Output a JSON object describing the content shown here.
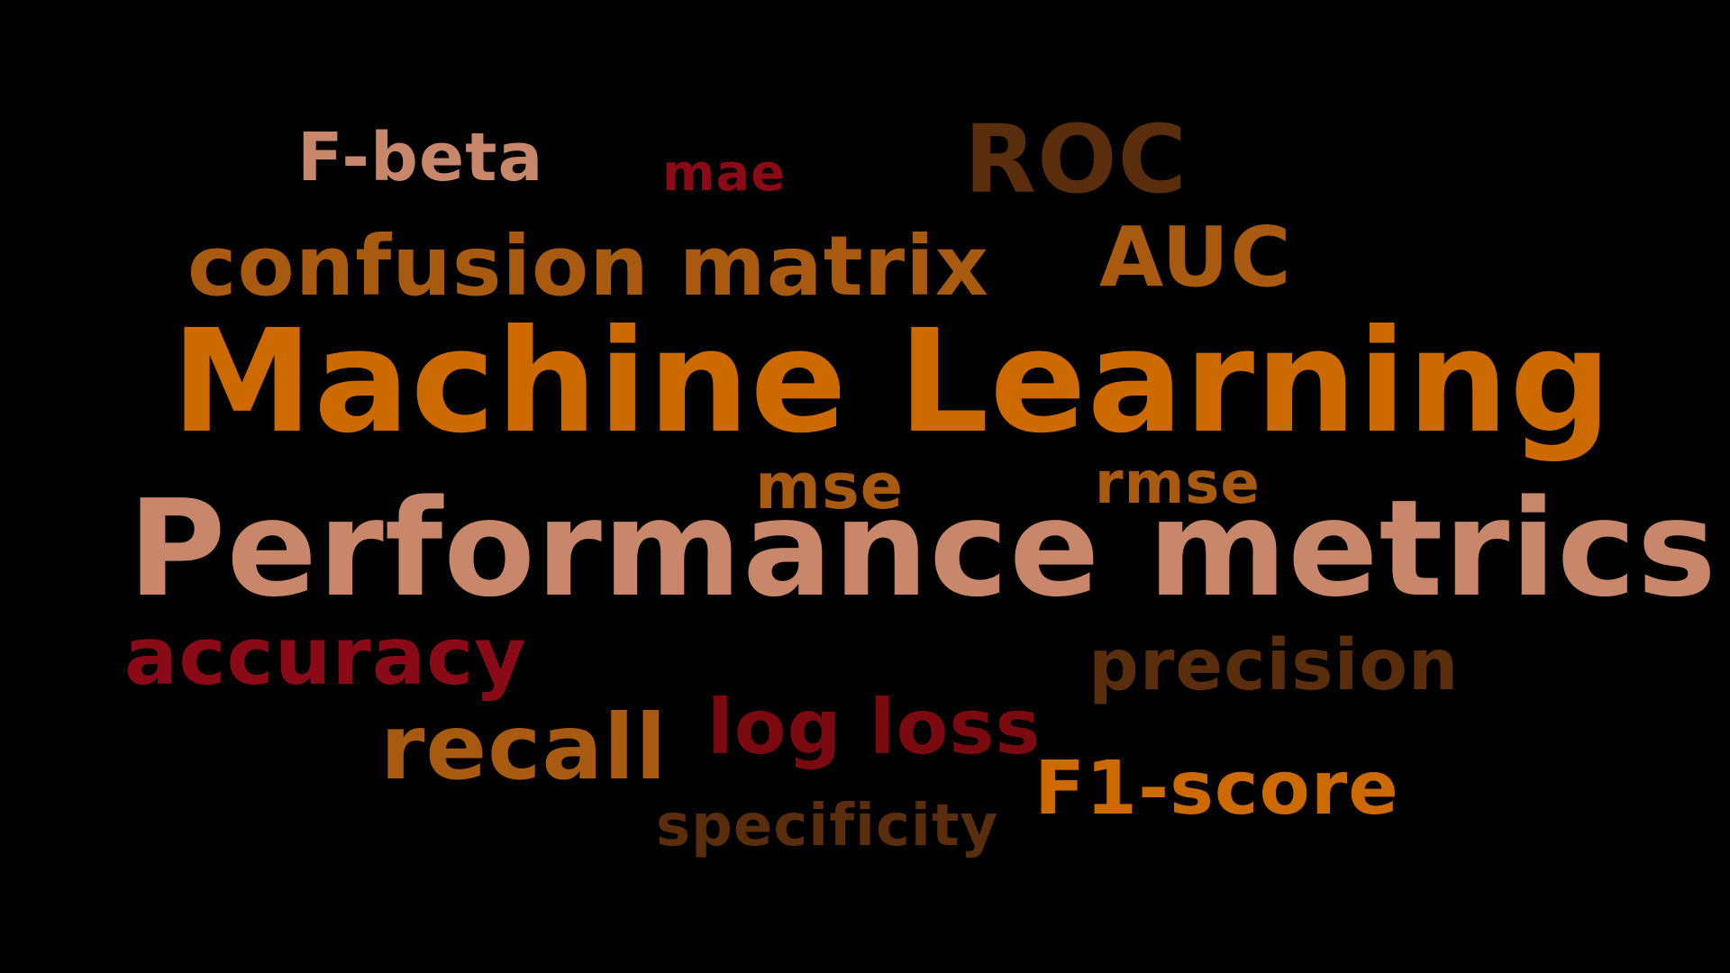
{
  "background": "#000000",
  "words": [
    {
      "id": "fbeta",
      "text": "F-beta",
      "color": "#C8876A"
    },
    {
      "id": "mae",
      "text": "mae",
      "color": "#8B0A18"
    },
    {
      "id": "roc",
      "text": "ROC",
      "color": "#5A2D0C"
    },
    {
      "id": "confusion",
      "text": "confusion matrix",
      "color": "#A85A10"
    },
    {
      "id": "auc",
      "text": "AUC",
      "color": "#A85A10"
    },
    {
      "id": "machine",
      "text": "Machine Learning",
      "color": "#CC6A00"
    },
    {
      "id": "mse",
      "text": "mse",
      "color": "#A85A10"
    },
    {
      "id": "rmse",
      "text": "rmse",
      "color": "#A85A10"
    },
    {
      "id": "performance",
      "text": "Performance metrics",
      "color": "#C8876A"
    },
    {
      "id": "accuracy",
      "text": "accuracy",
      "color": "#8B0A18"
    },
    {
      "id": "precision",
      "text": "precision",
      "color": "#5A2D0C"
    },
    {
      "id": "logloss",
      "text": "log loss",
      "color": "#7A0A10"
    },
    {
      "id": "recall",
      "text": "recall",
      "color": "#A85A10"
    },
    {
      "id": "f1score",
      "text": "F1-score",
      "color": "#CC6A00"
    },
    {
      "id": "specificity",
      "text": "specificity",
      "color": "#5A2D0C"
    }
  ]
}
